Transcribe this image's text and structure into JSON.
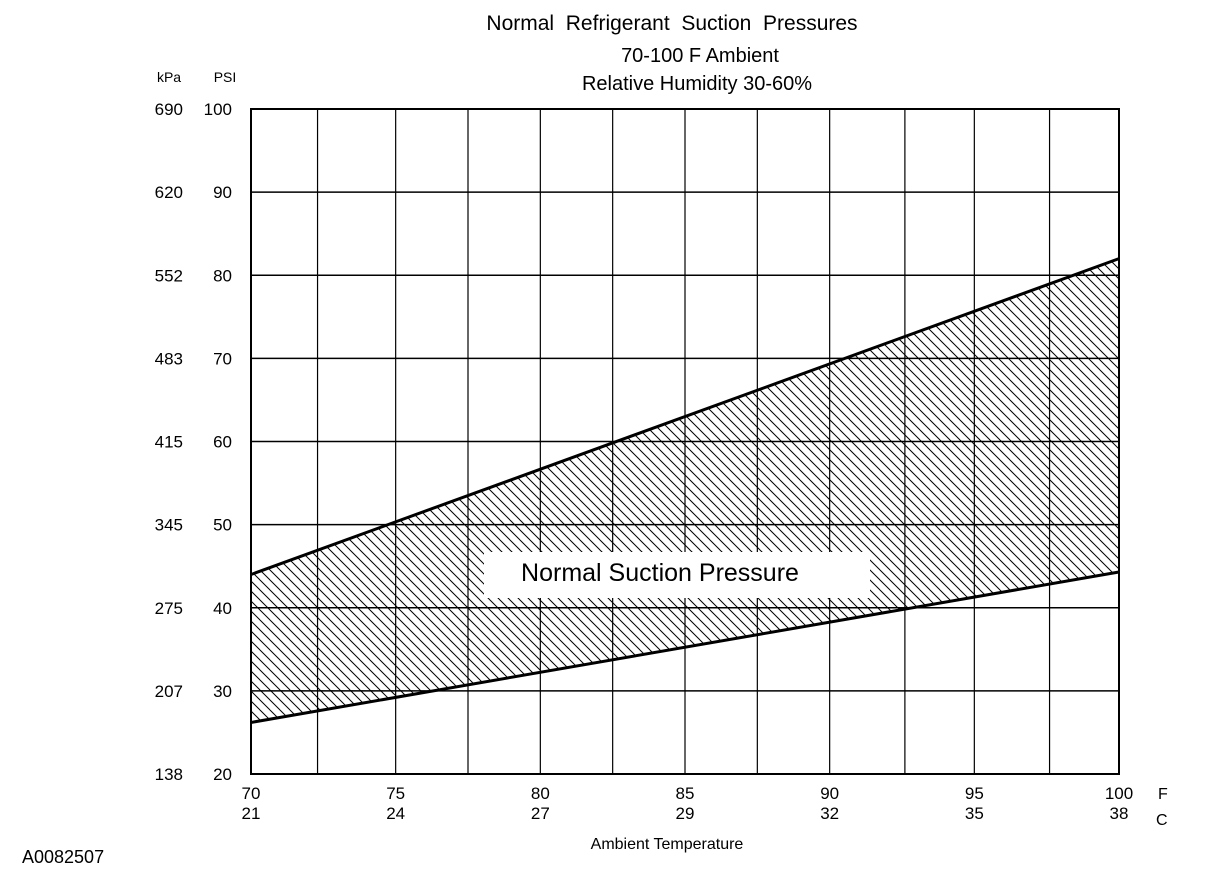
{
  "chart_data": {
    "type": "area",
    "title": "Normal  Refrigerant  Suction  Pressures",
    "subtitle_1": "70-100 F Ambient",
    "subtitle_2": "Relative Humidity 30-60%",
    "xlabel": "Ambient Temperature",
    "x_unit_primary": "F",
    "x_unit_secondary": "C",
    "y_unit_primary": "PSI",
    "y_unit_secondary": "kPa",
    "xlim": [
      70,
      100
    ],
    "ylim": [
      20,
      100
    ],
    "x_ticks_f": [
      "70",
      "75",
      "80",
      "85",
      "90",
      "95",
      "100"
    ],
    "x_ticks_c": [
      "21",
      "24",
      "27",
      "29",
      "32",
      "35",
      "38"
    ],
    "y_ticks_psi": [
      "20",
      "30",
      "40",
      "50",
      "60",
      "70",
      "80",
      "90",
      "100"
    ],
    "y_ticks_kpa": [
      "138",
      "207",
      "275",
      "345",
      "415",
      "483",
      "552",
      "620",
      "690"
    ],
    "grid": true,
    "grid_x_positions": [
      70,
      72.3,
      75,
      77.5,
      80,
      82.5,
      85,
      87.5,
      90,
      92.6,
      95,
      97.6,
      100
    ],
    "band_label": "Normal Suction Pressure",
    "series": [
      {
        "name": "upper",
        "x": [
          70,
          100
        ],
        "y": [
          44,
          82
        ]
      },
      {
        "name": "lower",
        "x": [
          70,
          100
        ],
        "y": [
          26.2,
          44.3
        ]
      }
    ],
    "fill_pattern": "diagonal-hatch"
  },
  "figure_code": "A0082507"
}
